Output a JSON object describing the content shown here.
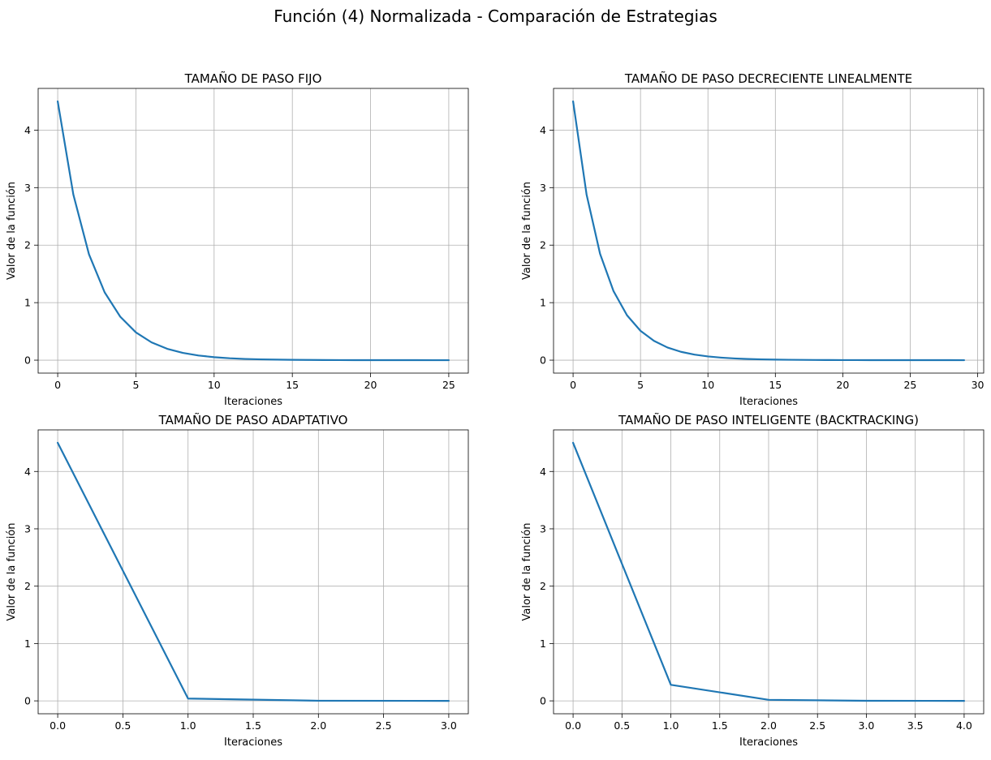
{
  "figure": {
    "suptitle": "Función (4) Normalizada - Comparación de Estrategias"
  },
  "chart_data": [
    {
      "type": "line",
      "title": "TAMAÑO DE PASO FIJO",
      "xlabel": "Iteraciones",
      "ylabel": "Valor de la función",
      "xlim": [
        -1.25,
        26.25
      ],
      "ylim": [
        -0.225,
        4.725
      ],
      "xticks": [
        0,
        5,
        10,
        15,
        20,
        25
      ],
      "yticks": [
        0,
        1,
        2,
        3,
        4
      ],
      "grid": true,
      "color": "#1f77b4",
      "x": [
        0,
        1,
        2,
        3,
        4,
        5,
        6,
        7,
        8,
        9,
        10,
        11,
        12,
        13,
        14,
        15,
        16,
        17,
        18,
        19,
        20,
        21,
        22,
        23,
        24,
        25
      ],
      "y": [
        4.5,
        2.88,
        1.84,
        1.18,
        0.755,
        0.483,
        0.309,
        0.198,
        0.127,
        0.081,
        0.052,
        0.033,
        0.021,
        0.014,
        0.009,
        0.006,
        0.004,
        0.002,
        0.0015,
        0.001,
        0.0006,
        0.0004,
        0.0003,
        0.0002,
        0.0001,
        0.0001
      ]
    },
    {
      "type": "line",
      "title": "TAMAÑO DE PASO DECRECIENTE LINEALMENTE",
      "xlabel": "Iteraciones",
      "ylabel": "Valor de la función",
      "xlim": [
        -1.45,
        30.45
      ],
      "ylim": [
        -0.225,
        4.725
      ],
      "xticks": [
        0,
        5,
        10,
        15,
        20,
        25,
        30
      ],
      "yticks": [
        0,
        1,
        2,
        3,
        4
      ],
      "grid": true,
      "color": "#1f77b4",
      "x": [
        0,
        1,
        2,
        3,
        4,
        5,
        6,
        7,
        8,
        9,
        10,
        11,
        12,
        13,
        14,
        15,
        16,
        17,
        18,
        19,
        20,
        21,
        22,
        23,
        24,
        25,
        26,
        27,
        28,
        29
      ],
      "y": [
        4.5,
        2.88,
        1.85,
        1.2,
        0.78,
        0.51,
        0.335,
        0.22,
        0.145,
        0.097,
        0.065,
        0.044,
        0.03,
        0.02,
        0.014,
        0.01,
        0.007,
        0.005,
        0.0035,
        0.0025,
        0.0018,
        0.0013,
        0.001,
        0.0007,
        0.0005,
        0.0004,
        0.0003,
        0.0002,
        0.0002,
        0.0001
      ]
    },
    {
      "type": "line",
      "title": "TAMAÑO DE PASO ADAPTATIVO",
      "xlabel": "Iteraciones",
      "ylabel": "Valor de la función",
      "xlim": [
        -0.15,
        3.15
      ],
      "ylim": [
        -0.225,
        4.725
      ],
      "xticks": [
        0.0,
        0.5,
        1.0,
        1.5,
        2.0,
        2.5,
        3.0
      ],
      "yticks": [
        0,
        1,
        2,
        3,
        4
      ],
      "grid": true,
      "color": "#1f77b4",
      "x": [
        0,
        1,
        2,
        3
      ],
      "y": [
        4.5,
        0.04,
        0.002,
        0.0
      ]
    },
    {
      "type": "line",
      "title": "TAMAÑO DE PASO INTELIGENTE (BACKTRACKING)",
      "xlabel": "Iteraciones",
      "ylabel": "Valor de la función",
      "xlim": [
        -0.2,
        4.2
      ],
      "ylim": [
        -0.225,
        4.725
      ],
      "xticks": [
        0.0,
        0.5,
        1.0,
        1.5,
        2.0,
        2.5,
        3.0,
        3.5,
        4.0
      ],
      "yticks": [
        0,
        1,
        2,
        3,
        4
      ],
      "grid": true,
      "color": "#1f77b4",
      "x": [
        0,
        1,
        2,
        3,
        4
      ],
      "y": [
        4.5,
        0.28,
        0.018,
        0.001,
        0.0
      ]
    }
  ]
}
